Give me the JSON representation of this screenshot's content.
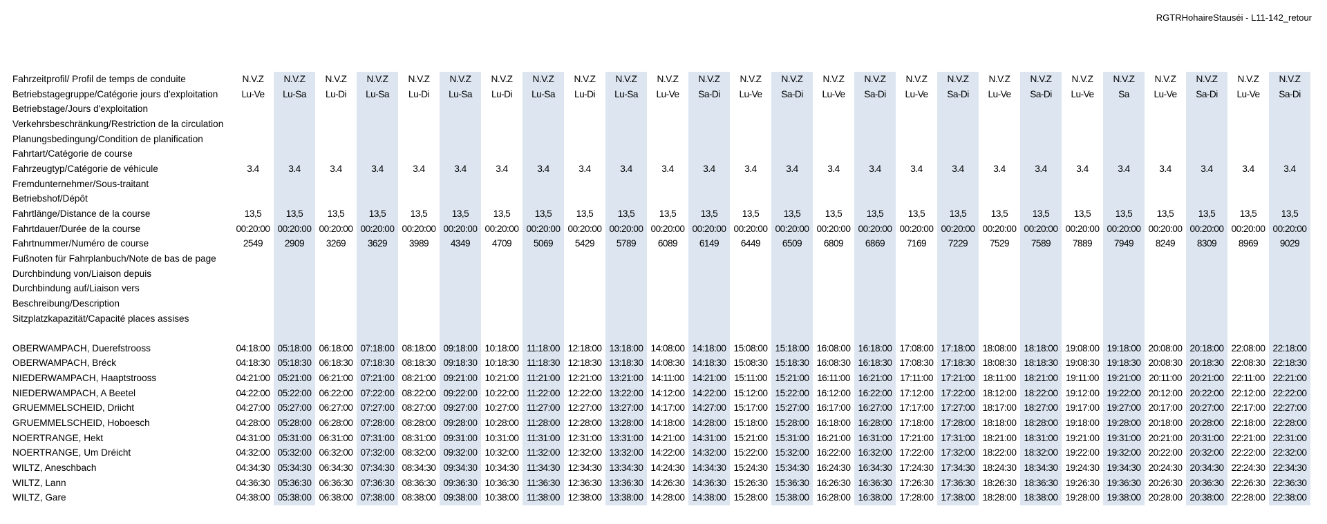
{
  "document_title": "RGTRHohaireStauséi - L11-142_retour",
  "shaded_column_color": "#dde6f0",
  "trips": [
    {
      "profile": "N.V.Z",
      "days": "Lu-Ve",
      "vehicle": "3.4",
      "distance": "13,5",
      "duration": "00:20:00",
      "trip_number": "2549",
      "shaded": false
    },
    {
      "profile": "N.V.Z",
      "days": "Lu-Sa",
      "vehicle": "3.4",
      "distance": "13,5",
      "duration": "00:20:00",
      "trip_number": "2909",
      "shaded": true
    },
    {
      "profile": "N.V.Z",
      "days": "Lu-Di",
      "vehicle": "3.4",
      "distance": "13,5",
      "duration": "00:20:00",
      "trip_number": "3269",
      "shaded": false
    },
    {
      "profile": "N.V.Z",
      "days": "Lu-Sa",
      "vehicle": "3.4",
      "distance": "13,5",
      "duration": "00:20:00",
      "trip_number": "3629",
      "shaded": true
    },
    {
      "profile": "N.V.Z",
      "days": "Lu-Di",
      "vehicle": "3.4",
      "distance": "13,5",
      "duration": "00:20:00",
      "trip_number": "3989",
      "shaded": false
    },
    {
      "profile": "N.V.Z",
      "days": "Lu-Sa",
      "vehicle": "3.4",
      "distance": "13,5",
      "duration": "00:20:00",
      "trip_number": "4349",
      "shaded": true
    },
    {
      "profile": "N.V.Z",
      "days": "Lu-Di",
      "vehicle": "3.4",
      "distance": "13,5",
      "duration": "00:20:00",
      "trip_number": "4709",
      "shaded": false
    },
    {
      "profile": "N.V.Z",
      "days": "Lu-Sa",
      "vehicle": "3.4",
      "distance": "13,5",
      "duration": "00:20:00",
      "trip_number": "5069",
      "shaded": true
    },
    {
      "profile": "N.V.Z",
      "days": "Lu-Di",
      "vehicle": "3.4",
      "distance": "13,5",
      "duration": "00:20:00",
      "trip_number": "5429",
      "shaded": false
    },
    {
      "profile": "N.V.Z",
      "days": "Lu-Sa",
      "vehicle": "3.4",
      "distance": "13,5",
      "duration": "00:20:00",
      "trip_number": "5789",
      "shaded": true
    },
    {
      "profile": "N.V.Z",
      "days": "Lu-Ve",
      "vehicle": "3.4",
      "distance": "13,5",
      "duration": "00:20:00",
      "trip_number": "6089",
      "shaded": false
    },
    {
      "profile": "N.V.Z",
      "days": "Sa-Di",
      "vehicle": "3.4",
      "distance": "13,5",
      "duration": "00:20:00",
      "trip_number": "6149",
      "shaded": true
    },
    {
      "profile": "N.V.Z",
      "days": "Lu-Ve",
      "vehicle": "3.4",
      "distance": "13,5",
      "duration": "00:20:00",
      "trip_number": "6449",
      "shaded": false
    },
    {
      "profile": "N.V.Z",
      "days": "Sa-Di",
      "vehicle": "3.4",
      "distance": "13,5",
      "duration": "00:20:00",
      "trip_number": "6509",
      "shaded": true
    },
    {
      "profile": "N.V.Z",
      "days": "Lu-Ve",
      "vehicle": "3.4",
      "distance": "13,5",
      "duration": "00:20:00",
      "trip_number": "6809",
      "shaded": false
    },
    {
      "profile": "N.V.Z",
      "days": "Sa-Di",
      "vehicle": "3.4",
      "distance": "13,5",
      "duration": "00:20:00",
      "trip_number": "6869",
      "shaded": true
    },
    {
      "profile": "N.V.Z",
      "days": "Lu-Ve",
      "vehicle": "3.4",
      "distance": "13,5",
      "duration": "00:20:00",
      "trip_number": "7169",
      "shaded": false
    },
    {
      "profile": "N.V.Z",
      "days": "Sa-Di",
      "vehicle": "3.4",
      "distance": "13,5",
      "duration": "00:20:00",
      "trip_number": "7229",
      "shaded": true
    },
    {
      "profile": "N.V.Z",
      "days": "Lu-Ve",
      "vehicle": "3.4",
      "distance": "13,5",
      "duration": "00:20:00",
      "trip_number": "7529",
      "shaded": false
    },
    {
      "profile": "N.V.Z",
      "days": "Sa-Di",
      "vehicle": "3.4",
      "distance": "13,5",
      "duration": "00:20:00",
      "trip_number": "7589",
      "shaded": true
    },
    {
      "profile": "N.V.Z",
      "days": "Lu-Ve",
      "vehicle": "3.4",
      "distance": "13,5",
      "duration": "00:20:00",
      "trip_number": "7889",
      "shaded": false
    },
    {
      "profile": "N.V.Z",
      "days": "Sa",
      "vehicle": "3.4",
      "distance": "13,5",
      "duration": "00:20:00",
      "trip_number": "7949",
      "shaded": true
    },
    {
      "profile": "N.V.Z",
      "days": "Lu-Ve",
      "vehicle": "3.4",
      "distance": "13,5",
      "duration": "00:20:00",
      "trip_number": "8249",
      "shaded": false
    },
    {
      "profile": "N.V.Z",
      "days": "Sa-Di",
      "vehicle": "3.4",
      "distance": "13,5",
      "duration": "00:20:00",
      "trip_number": "8309",
      "shaded": true
    },
    {
      "profile": "N.V.Z",
      "days": "Lu-Ve",
      "vehicle": "3.4",
      "distance": "13,5",
      "duration": "00:20:00",
      "trip_number": "8969",
      "shaded": false
    },
    {
      "profile": "N.V.Z",
      "days": "Sa-Di",
      "vehicle": "3.4",
      "distance": "13,5",
      "duration": "00:20:00",
      "trip_number": "9029",
      "shaded": true
    }
  ],
  "header_rows": [
    {
      "label": "Fahrzeitprofil/ Profil de temps de conduite",
      "field": "profile"
    },
    {
      "label": "Betriebstagegruppe/Catégorie jours d'exploitation",
      "field": "days"
    },
    {
      "label": "Betriebstage/Jours d'exploitation",
      "field": null
    },
    {
      "label": "Verkehrsbeschränkung/Restriction de la circulation",
      "field": null
    },
    {
      "label": "Planungsbedingung/Condition de planification",
      "field": null
    },
    {
      "label": "Fahrtart/Catégorie de course",
      "field": null
    },
    {
      "label": "Fahrzeugtyp/Catégorie de véhicule",
      "field": "vehicle"
    },
    {
      "label": "Fremdunternehmer/Sous-traitant",
      "field": null
    },
    {
      "label": "Betriebshof/Dépôt",
      "field": null
    },
    {
      "label": "Fahrtlänge/Distance de la course",
      "field": "distance"
    },
    {
      "label": "Fahrtdauer/Durée de la course",
      "field": "duration"
    },
    {
      "label": "Fahrtnummer/Numéro de course",
      "field": "trip_number"
    },
    {
      "label": "Fußnoten für Fahrplanbuch/Note de bas de page",
      "field": null
    },
    {
      "label": "Durchbindung von/Liaison depuis",
      "field": null
    },
    {
      "label": "Durchbindung auf/Liaison vers",
      "field": null
    },
    {
      "label": "Beschreibung/Description",
      "field": null
    },
    {
      "label": "Sitzplatzkapazität/Capacité places assises",
      "field": null
    }
  ],
  "stops": [
    {
      "name": "OBERWAMPACH, Duerefstrooss",
      "times": [
        "04:18:00",
        "05:18:00",
        "06:18:00",
        "07:18:00",
        "08:18:00",
        "09:18:00",
        "10:18:00",
        "11:18:00",
        "12:18:00",
        "13:18:00",
        "14:08:00",
        "14:18:00",
        "15:08:00",
        "15:18:00",
        "16:08:00",
        "16:18:00",
        "17:08:00",
        "17:18:00",
        "18:08:00",
        "18:18:00",
        "19:08:00",
        "19:18:00",
        "20:08:00",
        "20:18:00",
        "22:08:00",
        "22:18:00"
      ]
    },
    {
      "name": "OBERWAMPACH, Bréck",
      "times": [
        "04:18:30",
        "05:18:30",
        "06:18:30",
        "07:18:30",
        "08:18:30",
        "09:18:30",
        "10:18:30",
        "11:18:30",
        "12:18:30",
        "13:18:30",
        "14:08:30",
        "14:18:30",
        "15:08:30",
        "15:18:30",
        "16:08:30",
        "16:18:30",
        "17:08:30",
        "17:18:30",
        "18:08:30",
        "18:18:30",
        "19:08:30",
        "19:18:30",
        "20:08:30",
        "20:18:30",
        "22:08:30",
        "22:18:30"
      ]
    },
    {
      "name": "NIEDERWAMPACH, Haaptstrooss",
      "times": [
        "04:21:00",
        "05:21:00",
        "06:21:00",
        "07:21:00",
        "08:21:00",
        "09:21:00",
        "10:21:00",
        "11:21:00",
        "12:21:00",
        "13:21:00",
        "14:11:00",
        "14:21:00",
        "15:11:00",
        "15:21:00",
        "16:11:00",
        "16:21:00",
        "17:11:00",
        "17:21:00",
        "18:11:00",
        "18:21:00",
        "19:11:00",
        "19:21:00",
        "20:11:00",
        "20:21:00",
        "22:11:00",
        "22:21:00"
      ]
    },
    {
      "name": "NIEDERWAMPACH, A Beetel",
      "times": [
        "04:22:00",
        "05:22:00",
        "06:22:00",
        "07:22:00",
        "08:22:00",
        "09:22:00",
        "10:22:00",
        "11:22:00",
        "12:22:00",
        "13:22:00",
        "14:12:00",
        "14:22:00",
        "15:12:00",
        "15:22:00",
        "16:12:00",
        "16:22:00",
        "17:12:00",
        "17:22:00",
        "18:12:00",
        "18:22:00",
        "19:12:00",
        "19:22:00",
        "20:12:00",
        "20:22:00",
        "22:12:00",
        "22:22:00"
      ]
    },
    {
      "name": "GRUEMMELSCHEID, Driicht",
      "times": [
        "04:27:00",
        "05:27:00",
        "06:27:00",
        "07:27:00",
        "08:27:00",
        "09:27:00",
        "10:27:00",
        "11:27:00",
        "12:27:00",
        "13:27:00",
        "14:17:00",
        "14:27:00",
        "15:17:00",
        "15:27:00",
        "16:17:00",
        "16:27:00",
        "17:17:00",
        "17:27:00",
        "18:17:00",
        "18:27:00",
        "19:17:00",
        "19:27:00",
        "20:17:00",
        "20:27:00",
        "22:17:00",
        "22:27:00"
      ]
    },
    {
      "name": "GRUEMMELSCHEID, Hoboesch",
      "times": [
        "04:28:00",
        "05:28:00",
        "06:28:00",
        "07:28:00",
        "08:28:00",
        "09:28:00",
        "10:28:00",
        "11:28:00",
        "12:28:00",
        "13:28:00",
        "14:18:00",
        "14:28:00",
        "15:18:00",
        "15:28:00",
        "16:18:00",
        "16:28:00",
        "17:18:00",
        "17:28:00",
        "18:18:00",
        "18:28:00",
        "19:18:00",
        "19:28:00",
        "20:18:00",
        "20:28:00",
        "22:18:00",
        "22:28:00"
      ]
    },
    {
      "name": "NOERTRANGE, Hekt",
      "times": [
        "04:31:00",
        "05:31:00",
        "06:31:00",
        "07:31:00",
        "08:31:00",
        "09:31:00",
        "10:31:00",
        "11:31:00",
        "12:31:00",
        "13:31:00",
        "14:21:00",
        "14:31:00",
        "15:21:00",
        "15:31:00",
        "16:21:00",
        "16:31:00",
        "17:21:00",
        "17:31:00",
        "18:21:00",
        "18:31:00",
        "19:21:00",
        "19:31:00",
        "20:21:00",
        "20:31:00",
        "22:21:00",
        "22:31:00"
      ]
    },
    {
      "name": "NOERTRANGE, Um Dréicht",
      "times": [
        "04:32:00",
        "05:32:00",
        "06:32:00",
        "07:32:00",
        "08:32:00",
        "09:32:00",
        "10:32:00",
        "11:32:00",
        "12:32:00",
        "13:32:00",
        "14:22:00",
        "14:32:00",
        "15:22:00",
        "15:32:00",
        "16:22:00",
        "16:32:00",
        "17:22:00",
        "17:32:00",
        "18:22:00",
        "18:32:00",
        "19:22:00",
        "19:32:00",
        "20:22:00",
        "20:32:00",
        "22:22:00",
        "22:32:00"
      ]
    },
    {
      "name": "WILTZ, Aneschbach",
      "times": [
        "04:34:30",
        "05:34:30",
        "06:34:30",
        "07:34:30",
        "08:34:30",
        "09:34:30",
        "10:34:30",
        "11:34:30",
        "12:34:30",
        "13:34:30",
        "14:24:30",
        "14:34:30",
        "15:24:30",
        "15:34:30",
        "16:24:30",
        "16:34:30",
        "17:24:30",
        "17:34:30",
        "18:24:30",
        "18:34:30",
        "19:24:30",
        "19:34:30",
        "20:24:30",
        "20:34:30",
        "22:24:30",
        "22:34:30"
      ]
    },
    {
      "name": "WILTZ, Lann",
      "times": [
        "04:36:30",
        "05:36:30",
        "06:36:30",
        "07:36:30",
        "08:36:30",
        "09:36:30",
        "10:36:30",
        "11:36:30",
        "12:36:30",
        "13:36:30",
        "14:26:30",
        "14:36:30",
        "15:26:30",
        "15:36:30",
        "16:26:30",
        "16:36:30",
        "17:26:30",
        "17:36:30",
        "18:26:30",
        "18:36:30",
        "19:26:30",
        "19:36:30",
        "20:26:30",
        "20:36:30",
        "22:26:30",
        "22:36:30"
      ]
    },
    {
      "name": "WILTZ, Gare",
      "times": [
        "04:38:00",
        "05:38:00",
        "06:38:00",
        "07:38:00",
        "08:38:00",
        "09:38:00",
        "10:38:00",
        "11:38:00",
        "12:38:00",
        "13:38:00",
        "14:28:00",
        "14:38:00",
        "15:28:00",
        "15:38:00",
        "16:28:00",
        "16:38:00",
        "17:28:00",
        "17:38:00",
        "18:28:00",
        "18:38:00",
        "19:28:00",
        "19:38:00",
        "20:28:00",
        "20:38:00",
        "22:28:00",
        "22:38:00"
      ]
    }
  ]
}
